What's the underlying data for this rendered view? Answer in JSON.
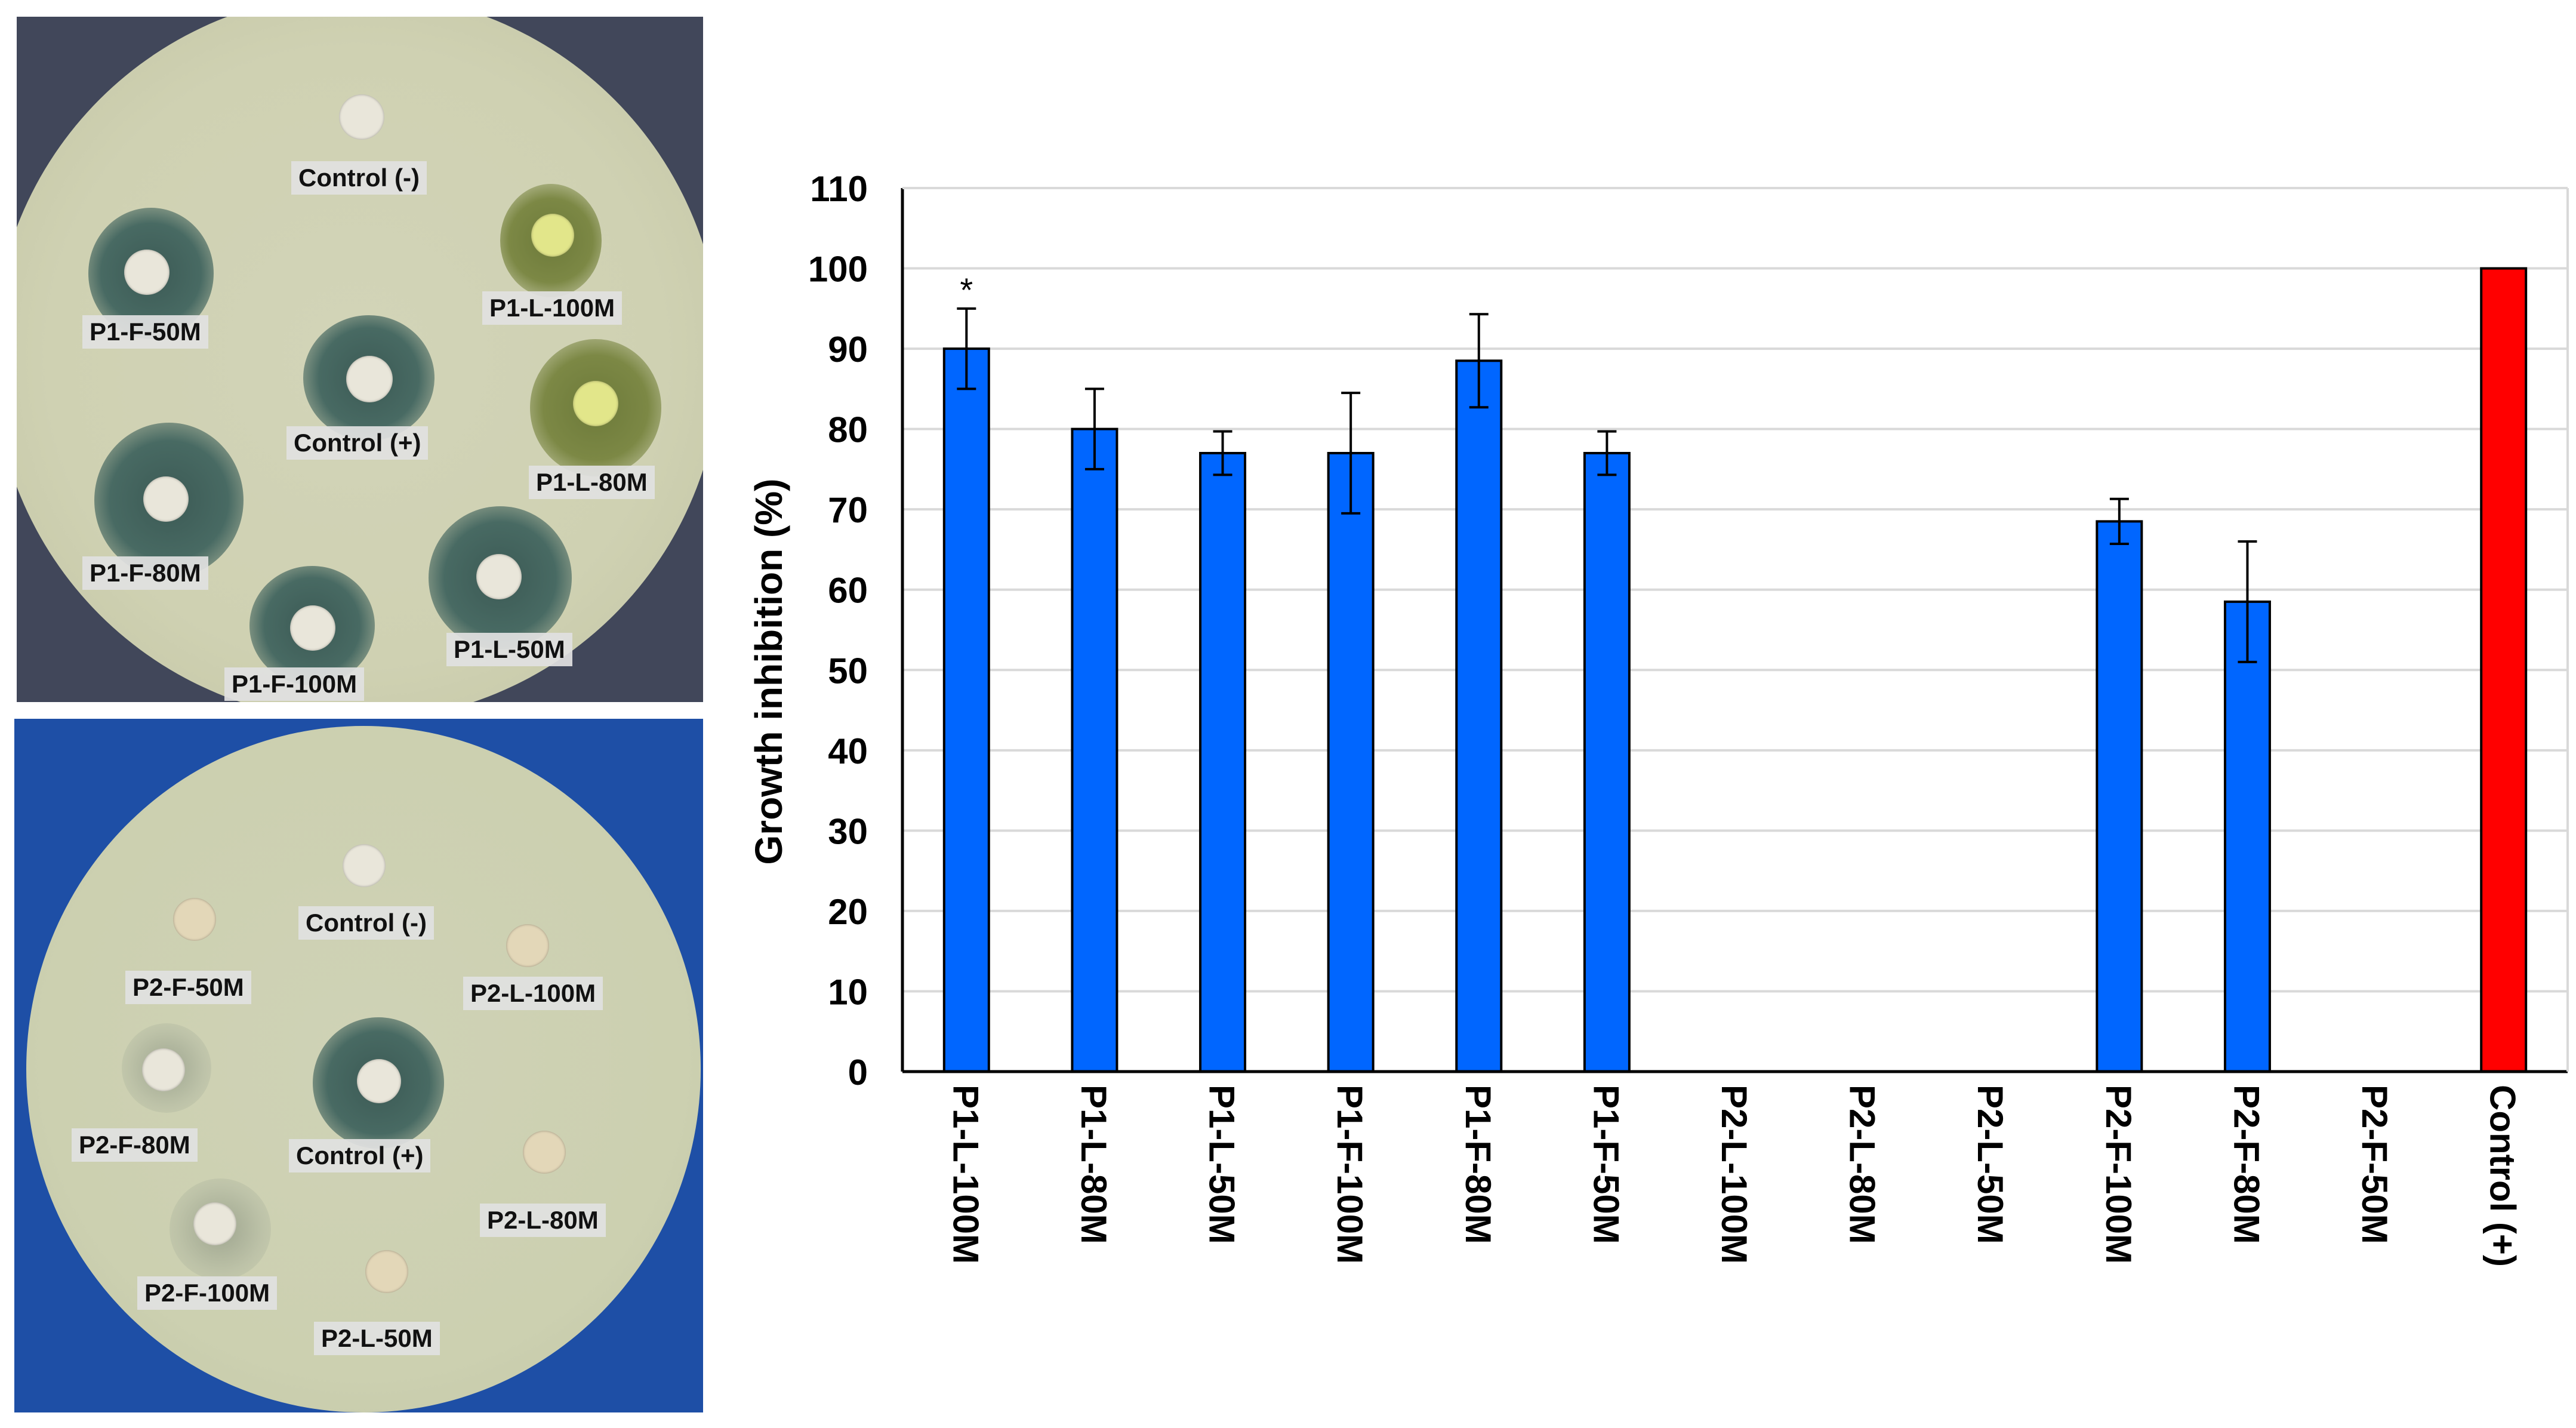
{
  "plates": {
    "top": {
      "labels": [
        "Control (-)",
        "P1-F-50M",
        "P1-L-100M",
        "Control (+)",
        "P1-L-80M",
        "P1-F-80M",
        "P1-F-100M",
        "P1-L-50M"
      ]
    },
    "bottom": {
      "labels": [
        "Control (-)",
        "P2-F-50M",
        "P2-L-100M",
        "P2-F-80M",
        "Control (+)",
        "P2-L-80M",
        "P2-F-100M",
        "P2-L-50M"
      ]
    }
  },
  "chart_data": {
    "type": "bar",
    "title": "",
    "xlabel": "",
    "ylabel": "Growth inhibition (%)",
    "ylim": [
      0,
      110
    ],
    "yticks": [
      0,
      10,
      20,
      30,
      40,
      50,
      60,
      70,
      80,
      90,
      100,
      110
    ],
    "grid": true,
    "categories": [
      "P1-L-100M",
      "P1-L-80M",
      "P1-L-50M",
      "P1-F-100M",
      "P1-F-80M",
      "P1-F-50M",
      "P2-L-100M",
      "P2-L-80M",
      "P2-L-50M",
      "P2-F-100M",
      "P2-F-80M",
      "P2-F-50M",
      "Control (+)"
    ],
    "values": [
      90,
      80,
      77,
      77,
      88.5,
      77,
      0,
      0,
      0,
      68.5,
      58.5,
      0,
      100
    ],
    "errors": [
      5,
      5,
      2.7,
      7.5,
      5.8,
      2.7,
      0,
      0,
      0,
      2.8,
      7.5,
      0,
      0
    ],
    "annotations": [
      "*",
      "",
      "",
      "",
      "",
      "",
      "",
      "",
      "",
      "",
      "",
      "",
      ""
    ],
    "colors": {
      "bar": "#0066ff",
      "control": "#ff0000",
      "grid": "#d9d9d9",
      "axis": "#000000"
    }
  }
}
